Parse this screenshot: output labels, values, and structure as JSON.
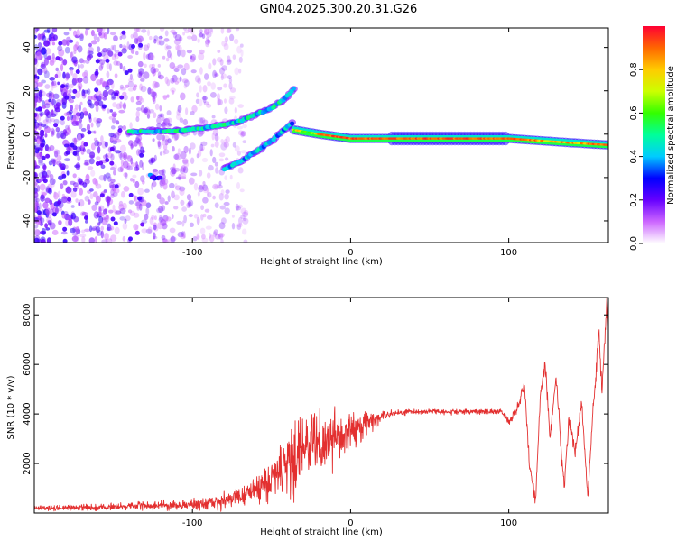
{
  "title": "GN04.2025.300.20.31.G26",
  "chart_data": [
    {
      "type": "heatmap",
      "name": "spectrogram",
      "xlabel": "Height of straight line (km)",
      "ylabel": "Frequency (Hz)",
      "xlim": [
        -200,
        163
      ],
      "ylim": [
        -50,
        49
      ],
      "xticks": [
        -100,
        0,
        100
      ],
      "yticks": [
        -40,
        -20,
        0,
        20,
        40
      ],
      "colorbar": {
        "label": "Normalized spectral amplitude",
        "range": [
          0,
          1
        ],
        "ticks": [
          0.0,
          0.2,
          0.4,
          0.6,
          0.8
        ],
        "tick_labels": [
          "0.0",
          "0.2",
          "0.4",
          "0.6",
          "0.8"
        ],
        "colors": [
          "#ffffff",
          "#cc66ff",
          "#6600ff",
          "#0000ff",
          "#00ccff",
          "#00ff99",
          "#33ff00",
          "#ccff00",
          "#ffcc00",
          "#ff6600",
          "#ff0033"
        ]
      },
      "features": {
        "noise_region_x": [
          -200,
          -78
        ],
        "rising_track_1": {
          "x": [
            -140,
            -110,
            -90,
            -70,
            -60,
            -50,
            -42,
            -36
          ],
          "y": [
            1,
            1.5,
            3,
            6,
            9,
            12,
            16,
            21
          ]
        },
        "rising_track_2": {
          "x": [
            -80,
            -70,
            -60,
            -50,
            -42,
            -36
          ],
          "y": [
            -16,
            -13,
            -8,
            -3,
            2,
            6
          ]
        },
        "main_band": {
          "x": [
            -36,
            -20,
            0,
            20,
            60,
            100,
            120,
            140,
            163
          ],
          "y": [
            2,
            0,
            -2,
            -2,
            -2,
            -2,
            -3,
            -4,
            -5
          ]
        }
      }
    },
    {
      "type": "line",
      "name": "snr",
      "xlabel": "Height of straight line (km)",
      "ylabel": "SNR (10 * v/v)",
      "xlim": [
        -200,
        163
      ],
      "ylim": [
        0,
        8700
      ],
      "xticks": [
        -100,
        0,
        100
      ],
      "yticks": [
        2000,
        4000,
        6000,
        8000
      ],
      "series": [
        {
          "name": "SNR",
          "color": "#e33030",
          "envelope": {
            "x": [
              -200,
              -150,
              -100,
              -80,
              -70,
              -60,
              -50,
              -40,
              -30,
              -20,
              -10,
              0,
              10,
              20,
              30,
              40,
              60,
              80,
              95,
              100,
              105,
              110,
              113,
              117,
              120,
              123,
              126,
              130,
              135,
              138,
              142,
              146,
              150,
              153,
              155,
              157,
              159,
              160,
              162,
              163
            ],
            "y": [
              200,
              250,
              350,
              500,
              650,
              900,
              1300,
              2000,
              2600,
              2900,
              3100,
              3300,
              3600,
              3900,
              4050,
              4100,
              4100,
              4100,
              4100,
              3700,
              4200,
              5200,
              2000,
              500,
              4800,
              6000,
              3000,
              5500,
              1000,
              3800,
              2500,
              4500,
              600,
              3800,
              5500,
              7200,
              4800,
              6200,
              8600,
              7500
            ],
            "noise": [
              100,
              120,
              200,
              300,
              350,
              450,
              700,
              1200,
              1400,
              1300,
              1100,
              800,
              500,
              200,
              120,
              100,
              100,
              100,
              100,
              150,
              200,
              300,
              250,
              200,
              250,
              300,
              250,
              300,
              250,
              250,
              250,
              300,
              250,
              250,
              300,
              300,
              300,
              300,
              300,
              300
            ]
          }
        }
      ]
    }
  ]
}
